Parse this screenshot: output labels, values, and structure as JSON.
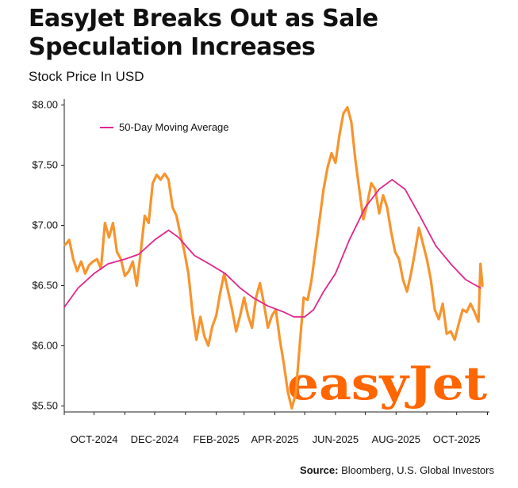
{
  "header": {
    "title": "EasyJet Breaks Out as Sale Speculation Increases",
    "subtitle": "Stock Price In USD"
  },
  "source": {
    "label": "Source:",
    "text": "Bloomberg, U.S. Global Investors"
  },
  "logo": {
    "text": "easyJet"
  },
  "colors": {
    "price": "#f7942d",
    "ma": "#e2258c",
    "logo": "#ff6600"
  },
  "chart_data": {
    "type": "line",
    "title": "EasyJet Breaks Out as Sale Speculation Increases",
    "subtitle": "Stock Price In USD",
    "xlabel": "",
    "ylabel": "",
    "x_range": [
      "2024-09-01",
      "2025-11-03"
    ],
    "ylim": [
      5.45,
      8.05
    ],
    "y_ticks": [
      5.5,
      6.0,
      6.5,
      7.0,
      7.5,
      8.0
    ],
    "y_tick_labels": [
      "$5.50",
      "$6.00",
      "$6.50",
      "$7.00",
      "$7.50",
      "$8.00"
    ],
    "x_ticks": [
      "2024-10-01",
      "2024-12-01",
      "2025-02-01",
      "2025-04-01",
      "2025-06-01",
      "2025-08-01",
      "2025-10-01"
    ],
    "x_tick_labels": [
      "OCT-2024",
      "DEC-2024",
      "FEB-2025",
      "APR-2025",
      "JUN-2025",
      "AUG-2025",
      "OCT-2025"
    ],
    "grid": false,
    "legend": {
      "position": "top-left",
      "entries": [
        "50-Day Moving Average"
      ]
    },
    "series": [
      {
        "name": "",
        "color": "#f7942d",
        "points": [
          [
            "2024-09-02",
            6.84
          ],
          [
            "2024-09-06",
            6.88
          ],
          [
            "2024-09-10",
            6.72
          ],
          [
            "2024-09-14",
            6.62
          ],
          [
            "2024-09-18",
            6.7
          ],
          [
            "2024-09-22",
            6.6
          ],
          [
            "2024-09-26",
            6.67
          ],
          [
            "2024-09-30",
            6.7
          ],
          [
            "2024-10-04",
            6.72
          ],
          [
            "2024-10-08",
            6.64
          ],
          [
            "2024-10-12",
            7.02
          ],
          [
            "2024-10-16",
            6.9
          ],
          [
            "2024-10-20",
            7.02
          ],
          [
            "2024-10-24",
            6.78
          ],
          [
            "2024-10-28",
            6.72
          ],
          [
            "2024-11-01",
            6.58
          ],
          [
            "2024-11-05",
            6.62
          ],
          [
            "2024-11-09",
            6.7
          ],
          [
            "2024-11-13",
            6.5
          ],
          [
            "2024-11-17",
            6.78
          ],
          [
            "2024-11-21",
            7.08
          ],
          [
            "2024-11-25",
            7.02
          ],
          [
            "2024-11-29",
            7.35
          ],
          [
            "2024-12-03",
            7.42
          ],
          [
            "2024-12-07",
            7.38
          ],
          [
            "2024-12-11",
            7.43
          ],
          [
            "2024-12-15",
            7.38
          ],
          [
            "2024-12-19",
            7.15
          ],
          [
            "2024-12-23",
            7.08
          ],
          [
            "2024-12-27",
            6.92
          ],
          [
            "2024-12-31",
            6.78
          ],
          [
            "2025-01-04",
            6.6
          ],
          [
            "2025-01-08",
            6.28
          ],
          [
            "2025-01-12",
            6.05
          ],
          [
            "2025-01-16",
            6.24
          ],
          [
            "2025-01-20",
            6.08
          ],
          [
            "2025-01-24",
            6.0
          ],
          [
            "2025-01-28",
            6.16
          ],
          [
            "2025-02-01",
            6.25
          ],
          [
            "2025-02-05",
            6.44
          ],
          [
            "2025-02-09",
            6.6
          ],
          [
            "2025-02-13",
            6.45
          ],
          [
            "2025-02-17",
            6.3
          ],
          [
            "2025-02-21",
            6.12
          ],
          [
            "2025-02-25",
            6.25
          ],
          [
            "2025-03-01",
            6.4
          ],
          [
            "2025-03-05",
            6.25
          ],
          [
            "2025-03-09",
            6.15
          ],
          [
            "2025-03-13",
            6.4
          ],
          [
            "2025-03-17",
            6.52
          ],
          [
            "2025-03-21",
            6.35
          ],
          [
            "2025-03-25",
            6.15
          ],
          [
            "2025-03-29",
            6.25
          ],
          [
            "2025-04-02",
            6.3
          ],
          [
            "2025-04-06",
            6.05
          ],
          [
            "2025-04-10",
            5.85
          ],
          [
            "2025-04-14",
            5.62
          ],
          [
            "2025-04-18",
            5.48
          ],
          [
            "2025-04-22",
            5.6
          ],
          [
            "2025-04-26",
            6.0
          ],
          [
            "2025-04-30",
            6.4
          ],
          [
            "2025-05-04",
            6.38
          ],
          [
            "2025-05-08",
            6.55
          ],
          [
            "2025-05-12",
            6.8
          ],
          [
            "2025-05-16",
            7.05
          ],
          [
            "2025-05-20",
            7.3
          ],
          [
            "2025-05-24",
            7.48
          ],
          [
            "2025-05-28",
            7.6
          ],
          [
            "2025-06-01",
            7.52
          ],
          [
            "2025-06-05",
            7.75
          ],
          [
            "2025-06-09",
            7.93
          ],
          [
            "2025-06-13",
            7.98
          ],
          [
            "2025-06-17",
            7.86
          ],
          [
            "2025-06-21",
            7.55
          ],
          [
            "2025-06-25",
            7.3
          ],
          [
            "2025-06-29",
            7.05
          ],
          [
            "2025-07-03",
            7.18
          ],
          [
            "2025-07-07",
            7.35
          ],
          [
            "2025-07-11",
            7.3
          ],
          [
            "2025-07-15",
            7.1
          ],
          [
            "2025-07-19",
            7.25
          ],
          [
            "2025-07-23",
            7.15
          ],
          [
            "2025-07-27",
            6.95
          ],
          [
            "2025-07-31",
            6.78
          ],
          [
            "2025-08-04",
            6.72
          ],
          [
            "2025-08-08",
            6.55
          ],
          [
            "2025-08-12",
            6.45
          ],
          [
            "2025-08-16",
            6.6
          ],
          [
            "2025-08-20",
            6.78
          ],
          [
            "2025-08-24",
            6.98
          ],
          [
            "2025-08-28",
            6.85
          ],
          [
            "2025-09-01",
            6.72
          ],
          [
            "2025-09-05",
            6.55
          ],
          [
            "2025-09-09",
            6.3
          ],
          [
            "2025-09-13",
            6.22
          ],
          [
            "2025-09-17",
            6.35
          ],
          [
            "2025-09-21",
            6.1
          ],
          [
            "2025-09-25",
            6.12
          ],
          [
            "2025-09-29",
            6.05
          ],
          [
            "2025-10-03",
            6.18
          ],
          [
            "2025-10-07",
            6.3
          ],
          [
            "2025-10-11",
            6.28
          ],
          [
            "2025-10-15",
            6.35
          ],
          [
            "2025-10-19",
            6.28
          ],
          [
            "2025-10-23",
            6.2
          ],
          [
            "2025-10-25",
            6.68
          ],
          [
            "2025-10-27",
            6.5
          ]
        ]
      },
      {
        "name": "50-Day Moving Average",
        "color": "#e2258c",
        "points": [
          [
            "2024-09-01",
            6.32
          ],
          [
            "2024-09-15",
            6.48
          ],
          [
            "2024-10-01",
            6.6
          ],
          [
            "2024-10-15",
            6.68
          ],
          [
            "2024-11-01",
            6.72
          ],
          [
            "2024-11-15",
            6.76
          ],
          [
            "2024-12-01",
            6.88
          ],
          [
            "2024-12-15",
            6.96
          ],
          [
            "2024-12-25",
            6.9
          ],
          [
            "2025-01-10",
            6.75
          ],
          [
            "2025-01-25",
            6.68
          ],
          [
            "2025-02-10",
            6.6
          ],
          [
            "2025-02-25",
            6.48
          ],
          [
            "2025-03-10",
            6.4
          ],
          [
            "2025-03-25",
            6.33
          ],
          [
            "2025-04-10",
            6.28
          ],
          [
            "2025-04-20",
            6.24
          ],
          [
            "2025-05-01",
            6.24
          ],
          [
            "2025-05-10",
            6.3
          ],
          [
            "2025-05-20",
            6.45
          ],
          [
            "2025-06-01",
            6.6
          ],
          [
            "2025-06-15",
            6.88
          ],
          [
            "2025-07-01",
            7.15
          ],
          [
            "2025-07-15",
            7.3
          ],
          [
            "2025-07-28",
            7.38
          ],
          [
            "2025-08-10",
            7.3
          ],
          [
            "2025-08-25",
            7.08
          ],
          [
            "2025-09-10",
            6.83
          ],
          [
            "2025-09-25",
            6.68
          ],
          [
            "2025-10-10",
            6.55
          ],
          [
            "2025-10-25",
            6.48
          ]
        ]
      }
    ]
  }
}
